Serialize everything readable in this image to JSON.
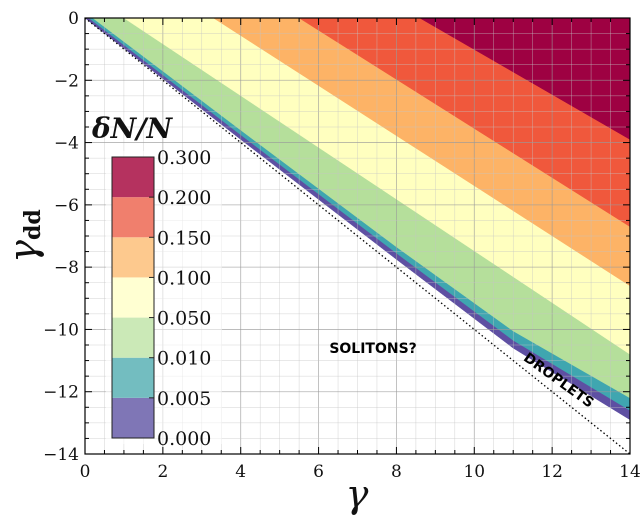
{
  "chart_data": {
    "type": "filled_contour",
    "xlabel": "γ",
    "ylabel": "γ",
    "ylabel_sub": "dd",
    "xlim": [
      0,
      14
    ],
    "ylim": [
      -14,
      0
    ],
    "xticks": [
      0,
      2,
      4,
      6,
      8,
      10,
      12,
      14
    ],
    "yticks": [
      0,
      -2,
      -4,
      -6,
      -8,
      -10,
      -12,
      -14
    ],
    "x_tick_labels": [
      "0",
      "2",
      "4",
      "6",
      "8",
      "10",
      "12",
      "14"
    ],
    "y_tick_labels": [
      "0",
      "−2",
      "−4",
      "−6",
      "−8",
      "−10",
      "−12",
      "−14"
    ],
    "grid": true,
    "colorbar": {
      "title": "δN/N",
      "levels": [
        0.0,
        0.005,
        0.01,
        0.05,
        0.1,
        0.15,
        0.2,
        0.3
      ],
      "labels": [
        "0.000",
        "0.005",
        "0.010",
        "0.050",
        "0.100",
        "0.150",
        "0.200",
        "0.300"
      ],
      "colors": [
        "#5e4fa2",
        "#3fa6b0",
        "#b5df9b",
        "#ffffbf",
        "#fdb366",
        "#f0583c",
        "#9e0142"
      ],
      "colorbar_colors": [
        "#7f76b6",
        "#73bdc0",
        "#cbe9b7",
        "#ffffd2",
        "#fdc98e",
        "#f07f6d",
        "#b5325f"
      ]
    },
    "contour_boundaries": [
      {
        "level": 0.0,
        "points": [
          [
            0,
            0
          ],
          [
            4,
            -3.9
          ],
          [
            8,
            -7.75
          ],
          [
            11,
            -10.6
          ],
          [
            14,
            -12.9
          ]
        ]
      },
      {
        "level": 0.005,
        "points": [
          [
            0.1,
            0
          ],
          [
            4,
            -3.75
          ],
          [
            8,
            -7.55
          ],
          [
            11,
            -10.35
          ],
          [
            14,
            -12.6
          ]
        ]
      },
      {
        "level": 0.01,
        "points": [
          [
            0.2,
            0
          ],
          [
            4,
            -3.6
          ],
          [
            8,
            -7.35
          ],
          [
            11,
            -10.05
          ],
          [
            14,
            -12.2
          ]
        ]
      },
      {
        "level": 0.05,
        "points": [
          [
            1.0,
            0
          ],
          [
            14,
            -10.8
          ]
        ]
      },
      {
        "level": 0.1,
        "points": [
          [
            3.3,
            0
          ],
          [
            14,
            -8.6
          ]
        ]
      },
      {
        "level": 0.15,
        "points": [
          [
            5.5,
            0
          ],
          [
            14,
            -6.7
          ]
        ]
      },
      {
        "level": 0.2,
        "points": [
          [
            8.6,
            0
          ],
          [
            14,
            -3.9
          ]
        ]
      }
    ],
    "dotted_line": {
      "points": [
        [
          0,
          0
        ],
        [
          14,
          -14
        ]
      ]
    },
    "annotations": [
      {
        "text": "SOLITONS?",
        "x": 7.4,
        "y": -10.75,
        "rotation": 0
      },
      {
        "text": "DROPLETS",
        "x": 12.1,
        "y": -11.75,
        "rotation": 36
      }
    ]
  }
}
